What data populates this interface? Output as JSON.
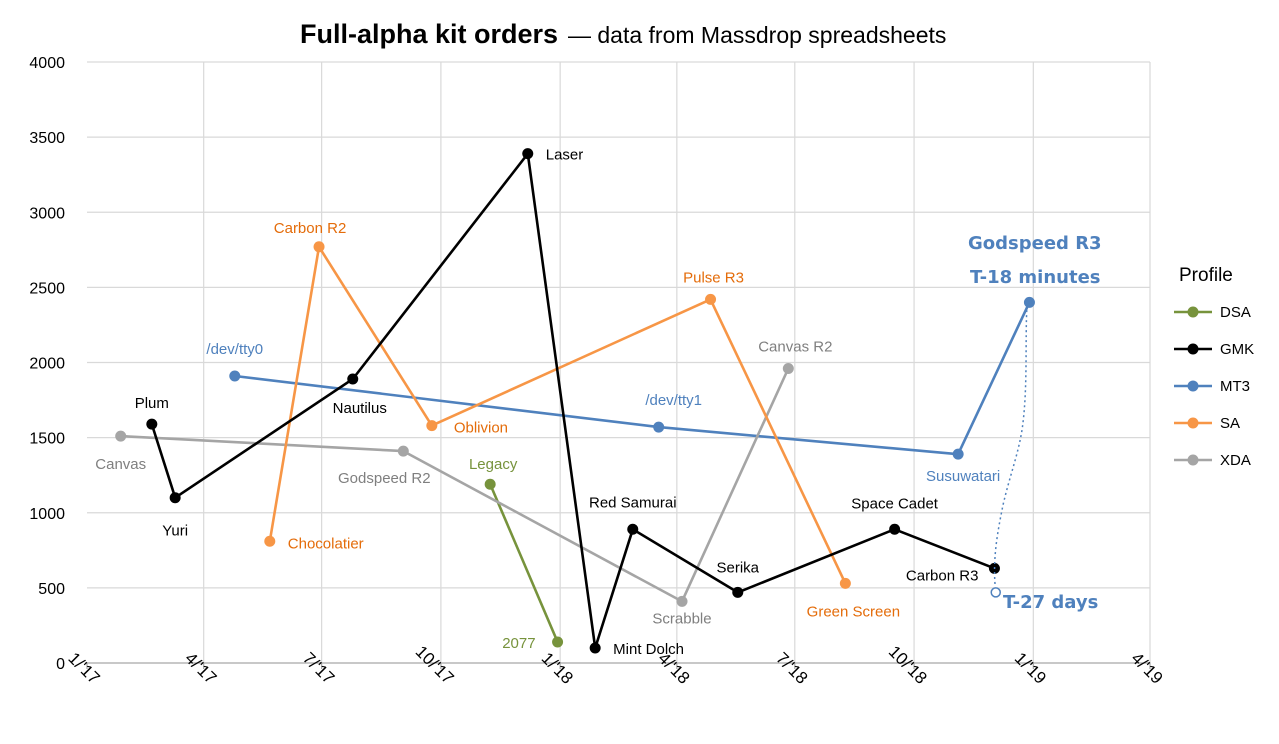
{
  "chart_data": {
    "type": "line",
    "title": "Full-alpha kit orders",
    "subtitle": "— data from Massdrop spreadsheets",
    "xlabel": "",
    "ylabel": "",
    "ylim": [
      0,
      4000
    ],
    "yticks": [
      "0",
      "500",
      "1000",
      "1500",
      "2000",
      "2500",
      "3000",
      "3500",
      "4000"
    ],
    "xlim": [
      "2017-01-01",
      "2019-04-01"
    ],
    "xticks": [
      "1/'17",
      "4/'17",
      "7/'17",
      "10/'17",
      "1/'18",
      "4/'18",
      "7/'18",
      "10/'18",
      "1/'19",
      "4/'19"
    ],
    "grid": true,
    "legend": {
      "title": "Profile",
      "position": "right"
    },
    "series": [
      {
        "name": "DSA",
        "color": "#77933c",
        "points": [
          {
            "x": "2017-11-08",
            "y": 1190,
            "label": "Legacy"
          },
          {
            "x": "2017-12-30",
            "y": 140,
            "label": "2077"
          }
        ]
      },
      {
        "name": "GMK",
        "color": "#000000",
        "points": [
          {
            "x": "2017-02-20",
            "y": 1590,
            "label": "Plum"
          },
          {
            "x": "2017-03-10",
            "y": 1100,
            "label": "Yuri"
          },
          {
            "x": "2017-07-25",
            "y": 1890,
            "label": "Nautilus"
          },
          {
            "x": "2017-12-07",
            "y": 3390,
            "label": "Laser"
          },
          {
            "x": "2018-01-28",
            "y": 100,
            "label": "Mint Dolch"
          },
          {
            "x": "2018-02-26",
            "y": 890,
            "label": "Red Samurai"
          },
          {
            "x": "2018-05-18",
            "y": 470,
            "label": "Serika"
          },
          {
            "x": "2018-09-16",
            "y": 890,
            "label": "Space Cadet"
          },
          {
            "x": "2018-12-02",
            "y": 630,
            "label": "Carbon R3"
          }
        ]
      },
      {
        "name": "MT3",
        "color": "#4f81bd",
        "points": [
          {
            "x": "2017-04-25",
            "y": 1910,
            "label": "/dev/tty0"
          },
          {
            "x": "2018-03-18",
            "y": 1570,
            "label": "/dev/tty1"
          },
          {
            "x": "2018-11-04",
            "y": 1390,
            "label": "Susuwatari"
          },
          {
            "x": "2018-12-29",
            "y": 2400,
            "label": "Godspeed R3"
          }
        ]
      },
      {
        "name": "SA",
        "color": "#f79646",
        "points": [
          {
            "x": "2017-05-22",
            "y": 810,
            "label": "Chocolatier"
          },
          {
            "x": "2017-06-29",
            "y": 2770,
            "label": "Carbon R2"
          },
          {
            "x": "2017-09-24",
            "y": 1580,
            "label": "Oblivion"
          },
          {
            "x": "2018-04-27",
            "y": 2420,
            "label": "Pulse R3"
          },
          {
            "x": "2018-08-09",
            "y": 530,
            "label": "Green Screen"
          }
        ]
      },
      {
        "name": "XDA",
        "color": "#a5a5a5",
        "points": [
          {
            "x": "2017-01-27",
            "y": 1510,
            "label": "Canvas"
          },
          {
            "x": "2017-09-02",
            "y": 1410,
            "label": "Godspeed R2"
          },
          {
            "x": "2018-04-05",
            "y": 410,
            "label": "Scrabble"
          },
          {
            "x": "2018-06-26",
            "y": 1960,
            "label": "Canvas R2"
          }
        ]
      }
    ],
    "annotations": [
      {
        "text_line1": "Godspeed R3",
        "text_line2": "T-18 minutes",
        "color": "#4f81bd"
      },
      {
        "text": "T-27 days",
        "x": "2018-12-03",
        "y": 470,
        "color": "#4f81bd"
      }
    ]
  }
}
